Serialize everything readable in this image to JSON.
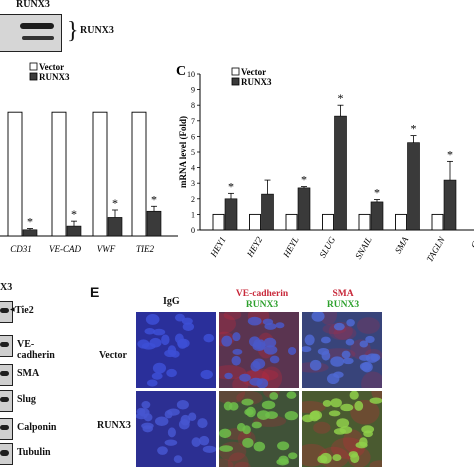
{
  "panel_a_top": {
    "lane_label": "RUNX3",
    "band_label": "RUNX3"
  },
  "panel_b": {
    "legend": [
      "Vector",
      "RUNX3"
    ],
    "genes": [
      "CD31",
      "VE-CAD",
      "VWF",
      "TIE2"
    ],
    "star": "*"
  },
  "panel_c": {
    "letter": "C",
    "ylabel": "mRNA level (Fold)",
    "legend": [
      "Vector",
      "RUNX3"
    ],
    "star": "*"
  },
  "panel_d": {
    "header": "X3",
    "rows": [
      "Tie2",
      "VE-cadherin",
      "SMA",
      "Slug",
      "Calponin",
      "Tubulin"
    ]
  },
  "panel_e": {
    "letter": "E",
    "col_igg": "IgG",
    "col_ve_top": "VE-cadherin",
    "col_ve_bottom": "RUNX3",
    "col_sma_top": "SMA",
    "col_sma_bottom": "RUNX3",
    "row_vector": "Vector",
    "row_runx3": "RUNX3"
  },
  "colors": {
    "vector_bar": "#ffffff",
    "runx3_bar": "#3a3a3a",
    "merge_red": "#c8283a",
    "merge_green": "#2ca02c"
  },
  "chart_data": [
    {
      "type": "bar",
      "panel": "B",
      "categories": [
        "CD31",
        "VE-CAD",
        "VWF",
        "TIE2"
      ],
      "series": [
        {
          "name": "Vector",
          "values": [
            1.0,
            1.0,
            1.0,
            1.0
          ]
        },
        {
          "name": "RUNX3",
          "values": [
            0.05,
            0.08,
            0.15,
            0.2
          ]
        }
      ],
      "errors": [
        0.01,
        0.04,
        0.06,
        0.04
      ],
      "significant": [
        true,
        true,
        true,
        true
      ],
      "ylim": [
        0,
        1.05
      ],
      "legend": "top-left"
    },
    {
      "type": "bar",
      "panel": "C",
      "title": "",
      "ylabel": "mRNA level (Fold)",
      "categories": [
        "HEY1",
        "HEY2",
        "HEYL",
        "SLUG",
        "SNAIL",
        "SMA",
        "TAGLN",
        "CA"
      ],
      "series": [
        {
          "name": "Vector",
          "values": [
            1,
            1,
            1,
            1,
            1,
            1,
            1,
            1
          ]
        },
        {
          "name": "RUNX3",
          "values": [
            2.0,
            2.3,
            2.7,
            7.3,
            1.8,
            5.6,
            3.2,
            null
          ]
        }
      ],
      "errors": [
        0.35,
        0.9,
        0.08,
        0.7,
        0.15,
        0.45,
        1.2,
        null
      ],
      "significant": [
        true,
        false,
        true,
        true,
        true,
        true,
        true,
        false
      ],
      "yticks": [
        0,
        1,
        2,
        3,
        4,
        5,
        6,
        7,
        8,
        9,
        10
      ],
      "ylim": [
        0,
        10
      ],
      "legend": "top-left"
    }
  ]
}
